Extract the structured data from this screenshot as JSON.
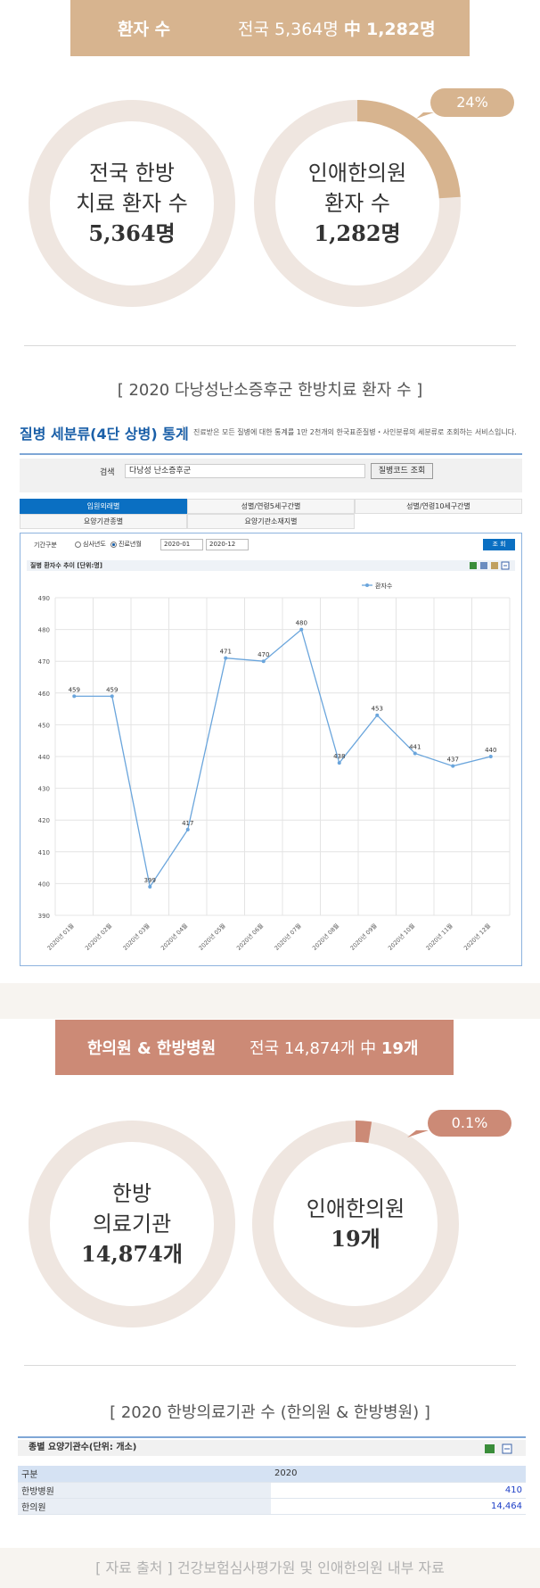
{
  "section1": {
    "band_label": "환자 수",
    "band_national": "전국 5,364명",
    "band_middle": "中",
    "band_value": "1,282명",
    "ring_left": {
      "line1": "전국 한방",
      "line2": "치료 환자 수",
      "value": "5,364명"
    },
    "ring_right": {
      "line1": "인애한의원",
      "line2": "환자 수",
      "value": "1,282명",
      "fraction": 0.24
    },
    "bubble": "24%",
    "caption": "[ 2020 다낭성난소증후군 한방치료 환자 수 ]"
  },
  "stats_widget": {
    "title": "질병 세분류(4단 상병) 통계",
    "description": "진료받은 모든 질병에 대한 통계를 1만 2천개의 한국표준질병・사인분류의 세분류로 조회하는 서비스입니다.",
    "search_label": "검색",
    "search_value": "다낭성 난소증후군",
    "search_button": "질병코드 조회",
    "tabs_row1": [
      "입원외래별",
      "성별/연령5세구간별",
      "성별/연령10세구간별"
    ],
    "tabs_row2": [
      "요양기관종별",
      "요양기관소재지별"
    ],
    "period_label": "기간구분",
    "radio1": "심사년도",
    "radio2": "진료년월",
    "date_from": "2020-01",
    "date_to": "2020-12",
    "query_button": "조 회",
    "chart_header": "질병 환자수 추이 [단위:명]"
  },
  "chart_data": {
    "type": "line",
    "series": [
      {
        "name": "환자수",
        "color": "#6aa5dc",
        "values": [
          459,
          459,
          399,
          417,
          471,
          470,
          480,
          438,
          453,
          441,
          437,
          440
        ]
      }
    ],
    "categories": [
      "2020년 01월",
      "2020년 02월",
      "2020년 03월",
      "2020년 04월",
      "2020년 05월",
      "2020년 06월",
      "2020년 07월",
      "2020년 08월",
      "2020년 09월",
      "2020년 10월",
      "2020년 11월",
      "2020년 12월"
    ],
    "ylim": [
      390,
      490
    ],
    "yticks": [
      390,
      400,
      410,
      420,
      430,
      440,
      450,
      460,
      470,
      480,
      490
    ],
    "legend": "top-right",
    "grid": true
  },
  "section2": {
    "band_label": "한의원 & 한방병원",
    "band_national": "전국 14,874개",
    "band_middle": "中",
    "band_value": "19개",
    "ring_left": {
      "line1": "한방",
      "line2": "의료기관",
      "value": "14,874개"
    },
    "ring_right": {
      "line1": "인애한의원",
      "value": "19개",
      "fraction": 0.001
    },
    "bubble": "0.1%",
    "caption": "[ 2020 한방의료기관 수 (한의원 & 한방병원) ]"
  },
  "table": {
    "title": "종별 요양기관수(단위: 개소)",
    "header": [
      "구분",
      "2020"
    ],
    "rows": [
      {
        "label": "한방병원",
        "value": "410"
      },
      {
        "label": "한의원",
        "value": "14,464"
      }
    ]
  },
  "source": "[ 자료 출처 ]    건강보험심사평가원 및 인애한의원 내부 자료",
  "colors": {
    "tan": "#d7b48f",
    "ring_bg": "#efe6e0",
    "rose": "#cc8a76",
    "line": "#6aa5dc"
  }
}
